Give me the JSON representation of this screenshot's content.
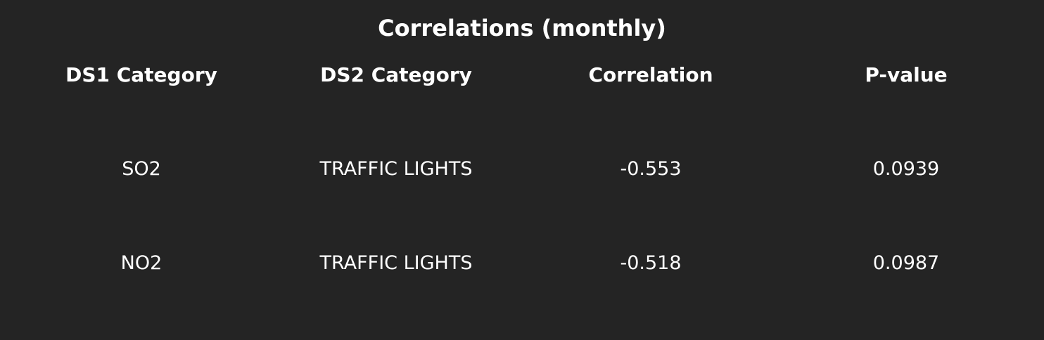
{
  "title": "Correlations (monthly)",
  "table": {
    "headers": [
      "DS1 Category",
      "DS2 Category",
      "Correlation",
      "P-value"
    ],
    "rows": [
      [
        "SO2",
        "TRAFFIC LIGHTS",
        "-0.553",
        "0.0939"
      ],
      [
        "NO2",
        "TRAFFIC LIGHTS",
        "-0.518",
        "0.0987"
      ]
    ]
  },
  "colors": {
    "background": "#242424",
    "text": "#ffffff"
  }
}
